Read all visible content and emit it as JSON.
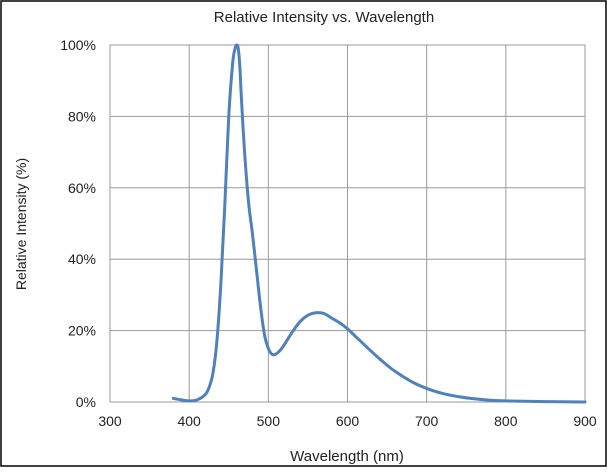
{
  "chart_data": {
    "type": "line",
    "title": "Relative Intensity vs. Wavelength",
    "xlabel": "Wavelength (nm)",
    "ylabel": "Relative Intensity (%)",
    "xlim": [
      300,
      900
    ],
    "ylim": [
      0,
      100
    ],
    "x_ticks": [
      300,
      400,
      500,
      600,
      700,
      800,
      900
    ],
    "y_ticks": [
      0,
      20,
      40,
      60,
      80,
      100
    ],
    "x_tick_labels": [
      "300",
      "400",
      "500",
      "600",
      "700",
      "800",
      "900"
    ],
    "y_tick_labels": [
      "0%",
      "20%",
      "40%",
      "60%",
      "80%",
      "100%"
    ],
    "grid": true,
    "legend": "none",
    "series": [
      {
        "color": "#4f81bd",
        "x": [
          380,
          390,
          400,
          410,
          420,
          425,
          430,
          435,
          440,
          445,
          450,
          455,
          458,
          460,
          462,
          464,
          466,
          470,
          475,
          480,
          485,
          490,
          495,
          500,
          505,
          510,
          515,
          520,
          530,
          540,
          550,
          560,
          570,
          580,
          590,
          600,
          610,
          620,
          630,
          640,
          650,
          660,
          680,
          700,
          720,
          740,
          760,
          780,
          800,
          850,
          900
        ],
        "y": [
          1,
          0.6,
          0.3,
          0.6,
          2,
          4,
          8,
          17,
          33,
          55,
          80,
          95,
          99,
          100,
          99,
          94,
          85,
          70,
          56,
          47,
          37,
          27,
          19,
          15,
          13.3,
          13.5,
          14.5,
          16,
          19.5,
          22.5,
          24.3,
          25,
          24.8,
          23.5,
          22.2,
          20.5,
          18.4,
          16.3,
          14.2,
          12.2,
          10.3,
          8.6,
          5.8,
          3.8,
          2.4,
          1.5,
          0.9,
          0.5,
          0.3,
          0.1,
          0
        ]
      }
    ]
  }
}
